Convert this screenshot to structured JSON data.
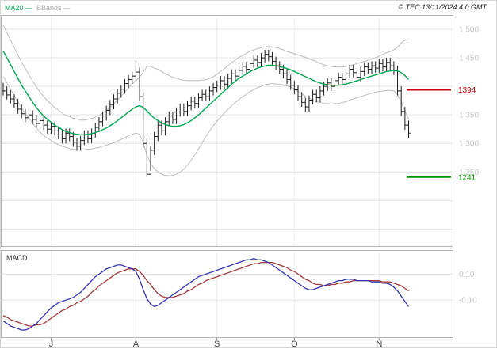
{
  "header": {
    "legend_ma20": "MA20",
    "legend_bbands": "BBands",
    "legend_dash": "—",
    "copyright": "© TEC 13/11/2024 4:0 GMT"
  },
  "colors": {
    "ma20": "#00a651",
    "bbands": "#bdbdbd",
    "bars": "#1a1a1a",
    "grid": "#e3e3e3",
    "grid_v": "#efefef",
    "axis_text": "#c6c6c6",
    "border": "#b5b5b5",
    "month_text": "#444444"
  },
  "chart_data": [
    {
      "type": "ohlc-bar",
      "title": "",
      "ylim": [
        1120,
        1525
      ],
      "gridlines": [
        1150,
        1200,
        1250,
        1300,
        1350,
        1400,
        1450,
        1500
      ],
      "axis_ticks": [
        {
          "value": 1500,
          "label": "1 500"
        },
        {
          "value": 1450,
          "label": "1 450"
        },
        {
          "value": 1350,
          "label": "1 350"
        },
        {
          "value": 1300,
          "label": "1 300"
        },
        {
          "value": 1250,
          "label": "1 250"
        }
      ],
      "x_ticks": [
        {
          "index": 13,
          "label": "J"
        },
        {
          "index": 36,
          "label": "A"
        },
        {
          "index": 58,
          "label": "S"
        },
        {
          "index": 79,
          "label": "O"
        },
        {
          "index": 102,
          "label": "N"
        }
      ],
      "levels": [
        {
          "value": 1394,
          "label": "1394",
          "color": "#cc0000"
        },
        {
          "value": 1241,
          "label": "1241",
          "color": "#009900"
        }
      ],
      "series": {
        "high": [
          1406,
          1400,
          1393,
          1386,
          1378,
          1368,
          1360,
          1358,
          1358,
          1350,
          1348,
          1348,
          1340,
          1338,
          1338,
          1330,
          1323,
          1326,
          1326,
          1320,
          1310,
          1313,
          1323,
          1323,
          1326,
          1336,
          1346,
          1356,
          1366,
          1376,
          1386,
          1396,
          1403,
          1413,
          1420,
          1426,
          1445,
          1433,
          1390,
          1308,
          1296,
          1320,
          1340,
          1340,
          1346,
          1356,
          1356,
          1363,
          1370,
          1370,
          1374,
          1382,
          1382,
          1388,
          1394,
          1394,
          1400,
          1406,
          1410,
          1418,
          1418,
          1422,
          1430,
          1430,
          1436,
          1443,
          1443,
          1448,
          1454,
          1454,
          1458,
          1464,
          1464,
          1460,
          1452,
          1444,
          1438,
          1430,
          1420,
          1410,
          1402,
          1390,
          1380,
          1384,
          1394,
          1394,
          1400,
          1408,
          1414,
          1414,
          1418,
          1424,
          1424,
          1430,
          1438,
          1438,
          1432,
          1434,
          1442,
          1442,
          1444,
          1444,
          1448,
          1448,
          1450,
          1450,
          1444,
          1436,
          1400,
          1364,
          1340
        ],
        "low": [
          1384,
          1377,
          1370,
          1362,
          1352,
          1344,
          1337,
          1337,
          1334,
          1327,
          1327,
          1324,
          1317,
          1317,
          1314,
          1307,
          1300,
          1300,
          1304,
          1294,
          1287,
          1287,
          1297,
          1300,
          1300,
          1310,
          1320,
          1330,
          1340,
          1350,
          1360,
          1370,
          1380,
          1387,
          1397,
          1404,
          1410,
          1374,
          1292,
          1241,
          1252,
          1280,
          1304,
          1314,
          1314,
          1330,
          1334,
          1334,
          1347,
          1348,
          1348,
          1358,
          1362,
          1362,
          1374,
          1374,
          1374,
          1384,
          1390,
          1394,
          1396,
          1396,
          1406,
          1410,
          1410,
          1420,
          1422,
          1422,
          1432,
          1434,
          1434,
          1442,
          1444,
          1436,
          1428,
          1422,
          1414,
          1404,
          1394,
          1386,
          1374,
          1364,
          1356,
          1356,
          1368,
          1372,
          1372,
          1384,
          1392,
          1392,
          1392,
          1402,
          1404,
          1404,
          1414,
          1416,
          1408,
          1408,
          1418,
          1422,
          1422,
          1424,
          1424,
          1426,
          1426,
          1428,
          1420,
          1384,
          1348,
          1324,
          1310
        ],
        "close": [
          1392,
          1385,
          1378,
          1370,
          1360,
          1352,
          1345,
          1350,
          1342,
          1335,
          1340,
          1332,
          1325,
          1330,
          1322,
          1315,
          1308,
          1318,
          1312,
          1302,
          1295,
          1305,
          1315,
          1308,
          1318,
          1328,
          1338,
          1348,
          1358,
          1368,
          1378,
          1388,
          1395,
          1405,
          1412,
          1418,
          1425,
          1382,
          1300,
          1246,
          1288,
          1312,
          1332,
          1322,
          1338,
          1348,
          1342,
          1355,
          1362,
          1356,
          1366,
          1374,
          1370,
          1380,
          1386,
          1382,
          1392,
          1398,
          1402,
          1410,
          1404,
          1414,
          1422,
          1418,
          1428,
          1435,
          1430,
          1440,
          1446,
          1442,
          1450,
          1456,
          1452,
          1444,
          1436,
          1430,
          1422,
          1412,
          1402,
          1394,
          1382,
          1372,
          1364,
          1376,
          1386,
          1380,
          1392,
          1400,
          1406,
          1400,
          1410,
          1416,
          1412,
          1422,
          1430,
          1424,
          1416,
          1426,
          1434,
          1430,
          1436,
          1432,
          1440,
          1434,
          1442,
          1436,
          1428,
          1392,
          1356,
          1332,
          1318
        ],
        "ma20": [
          1462,
          1450,
          1438,
          1426,
          1414,
          1402,
          1392,
          1382,
          1372,
          1363,
          1355,
          1348,
          1342,
          1337,
          1332,
          1328,
          1324,
          1321,
          1319,
          1317,
          1316,
          1315,
          1315,
          1316,
          1317,
          1319,
          1321,
          1324,
          1327,
          1331,
          1335,
          1340,
          1345,
          1350,
          1355,
          1360,
          1364,
          1366,
          1363,
          1357,
          1350,
          1344,
          1340,
          1336,
          1333,
          1331,
          1330,
          1330,
          1331,
          1333,
          1336,
          1340,
          1345,
          1350,
          1356,
          1362,
          1368,
          1374,
          1380,
          1386,
          1392,
          1398,
          1404,
          1409,
          1414,
          1418,
          1422,
          1426,
          1429,
          1432,
          1434,
          1436,
          1437,
          1437,
          1436,
          1435,
          1433,
          1431,
          1429,
          1426,
          1423,
          1420,
          1417,
          1414,
          1411,
          1408,
          1406,
          1404,
          1403,
          1402,
          1402,
          1402,
          1403,
          1404,
          1406,
          1408,
          1410,
          1412,
          1414,
          1416,
          1418,
          1420,
          1422,
          1424,
          1426,
          1427,
          1428,
          1427,
          1424,
          1419,
          1412
        ],
        "bb_upper": [
          1507,
          1494,
          1481,
          1468,
          1455,
          1442,
          1431,
          1420,
          1409,
          1399,
          1390,
          1382,
          1375,
          1369,
          1363,
          1358,
          1353,
          1349,
          1347,
          1344,
          1343,
          1341,
          1341,
          1342,
          1344,
          1346,
          1349,
          1353,
          1357,
          1363,
          1369,
          1376,
          1383,
          1390,
          1397,
          1404,
          1410,
          1416,
          1425,
          1435,
          1435,
          1432,
          1430,
          1426,
          1422,
          1419,
          1416,
          1414,
          1412,
          1411,
          1410,
          1410,
          1410,
          1410,
          1411,
          1412,
          1414,
          1417,
          1421,
          1426,
          1431,
          1436,
          1442,
          1446,
          1451,
          1454,
          1458,
          1461,
          1464,
          1466,
          1468,
          1469,
          1470,
          1469,
          1468,
          1466,
          1464,
          1461,
          1459,
          1457,
          1455,
          1453,
          1451,
          1448,
          1446,
          1443,
          1440,
          1438,
          1436,
          1435,
          1434,
          1434,
          1434,
          1435,
          1436,
          1438,
          1440,
          1442,
          1444,
          1446,
          1448,
          1450,
          1453,
          1456,
          1459,
          1461,
          1464,
          1469,
          1476,
          1481,
          1482
        ],
        "bb_lower": [
          1417,
          1406,
          1395,
          1384,
          1373,
          1362,
          1353,
          1344,
          1335,
          1327,
          1320,
          1314,
          1309,
          1305,
          1301,
          1298,
          1295,
          1293,
          1291,
          1290,
          1289,
          1289,
          1289,
          1290,
          1290,
          1292,
          1293,
          1295,
          1297,
          1299,
          1301,
          1304,
          1307,
          1310,
          1313,
          1316,
          1318,
          1316,
          1301,
          1279,
          1265,
          1256,
          1250,
          1246,
          1244,
          1243,
          1244,
          1246,
          1250,
          1255,
          1262,
          1270,
          1280,
          1290,
          1301,
          1312,
          1322,
          1331,
          1339,
          1346,
          1353,
          1360,
          1366,
          1372,
          1377,
          1382,
          1386,
          1391,
          1394,
          1398,
          1400,
          1403,
          1404,
          1405,
          1404,
          1404,
          1402,
          1401,
          1399,
          1395,
          1391,
          1387,
          1383,
          1380,
          1376,
          1373,
          1372,
          1370,
          1370,
          1369,
          1370,
          1370,
          1372,
          1373,
          1376,
          1378,
          1380,
          1382,
          1384,
          1386,
          1388,
          1390,
          1391,
          1392,
          1393,
          1393,
          1392,
          1385,
          1372,
          1357,
          1342
        ]
      }
    },
    {
      "type": "line",
      "title": "MACD",
      "ylim": [
        -0.385,
        0.285
      ],
      "axis_ticks": [
        {
          "value": 0.1,
          "label": "0.10"
        },
        {
          "value": -0.1,
          "label": "-0.10"
        }
      ],
      "series": [
        {
          "name": "MACD",
          "color": "#3333b4",
          "values": [
            -0.26,
            -0.28,
            -0.3,
            -0.31,
            -0.32,
            -0.33,
            -0.33,
            -0.32,
            -0.3,
            -0.28,
            -0.25,
            -0.22,
            -0.19,
            -0.16,
            -0.14,
            -0.12,
            -0.11,
            -0.1,
            -0.09,
            -0.08,
            -0.06,
            -0.04,
            -0.01,
            0.02,
            0.05,
            0.08,
            0.1,
            0.12,
            0.14,
            0.15,
            0.16,
            0.17,
            0.17,
            0.16,
            0.15,
            0.14,
            0.12,
            0.06,
            -0.02,
            -0.09,
            -0.13,
            -0.15,
            -0.14,
            -0.12,
            -0.1,
            -0.08,
            -0.06,
            -0.04,
            -0.02,
            0.0,
            0.02,
            0.04,
            0.06,
            0.08,
            0.09,
            0.1,
            0.11,
            0.12,
            0.13,
            0.14,
            0.15,
            0.16,
            0.17,
            0.18,
            0.19,
            0.2,
            0.21,
            0.21,
            0.22,
            0.21,
            0.21,
            0.2,
            0.19,
            0.17,
            0.15,
            0.13,
            0.11,
            0.09,
            0.07,
            0.05,
            0.03,
            0.01,
            -0.01,
            -0.02,
            -0.02,
            -0.01,
            0.0,
            0.01,
            0.02,
            0.03,
            0.04,
            0.05,
            0.05,
            0.06,
            0.06,
            0.06,
            0.05,
            0.05,
            0.05,
            0.05,
            0.04,
            0.04,
            0.04,
            0.03,
            0.03,
            0.02,
            0.0,
            -0.03,
            -0.07,
            -0.11,
            -0.15
          ]
        },
        {
          "name": "Signal",
          "color": "#a03a3a",
          "values": [
            -0.22,
            -0.23,
            -0.25,
            -0.26,
            -0.27,
            -0.28,
            -0.29,
            -0.3,
            -0.3,
            -0.29,
            -0.29,
            -0.28,
            -0.26,
            -0.24,
            -0.22,
            -0.2,
            -0.18,
            -0.17,
            -0.15,
            -0.14,
            -0.12,
            -0.11,
            -0.09,
            -0.07,
            -0.04,
            -0.02,
            0.01,
            0.03,
            0.05,
            0.07,
            0.09,
            0.11,
            0.12,
            0.13,
            0.14,
            0.14,
            0.14,
            0.12,
            0.09,
            0.05,
            0.02,
            -0.02,
            -0.05,
            -0.07,
            -0.08,
            -0.08,
            -0.08,
            -0.07,
            -0.06,
            -0.05,
            -0.03,
            -0.02,
            0.0,
            0.02,
            0.03,
            0.05,
            0.06,
            0.07,
            0.08,
            0.09,
            0.1,
            0.11,
            0.12,
            0.13,
            0.14,
            0.15,
            0.16,
            0.17,
            0.18,
            0.18,
            0.19,
            0.19,
            0.19,
            0.19,
            0.18,
            0.17,
            0.16,
            0.15,
            0.13,
            0.12,
            0.1,
            0.08,
            0.06,
            0.05,
            0.03,
            0.02,
            0.02,
            0.01,
            0.01,
            0.02,
            0.02,
            0.03,
            0.03,
            0.04,
            0.04,
            0.05,
            0.05,
            0.05,
            0.05,
            0.05,
            0.05,
            0.05,
            0.05,
            0.04,
            0.04,
            0.04,
            0.03,
            0.02,
            0.01,
            -0.01,
            -0.03
          ]
        }
      ]
    }
  ]
}
